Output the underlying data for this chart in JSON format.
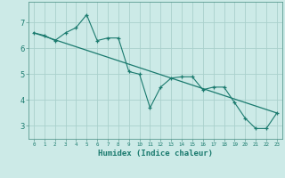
{
  "line1_x": [
    0,
    1,
    2,
    3,
    4,
    5,
    6,
    7,
    8,
    9,
    10,
    11,
    12,
    13,
    14,
    15,
    16,
    17,
    18,
    19,
    20,
    21,
    22,
    23
  ],
  "line1_y": [
    6.6,
    6.5,
    6.3,
    6.6,
    6.8,
    7.3,
    6.3,
    6.4,
    6.4,
    5.1,
    5.0,
    3.7,
    4.5,
    4.85,
    4.9,
    4.9,
    4.4,
    4.5,
    4.5,
    3.9,
    3.3,
    2.9,
    2.9,
    3.5
  ],
  "line2_x": [
    0,
    23
  ],
  "line2_y": [
    6.6,
    3.5
  ],
  "line_color": "#1a7a6e",
  "bg_color": "#cceae7",
  "grid_color": "#aad0cc",
  "xlabel": "Humidex (Indice chaleur)",
  "xlim": [
    -0.5,
    23.5
  ],
  "ylim": [
    2.5,
    7.8
  ],
  "yticks": [
    3,
    4,
    5,
    6,
    7
  ],
  "xticks": [
    0,
    1,
    2,
    3,
    4,
    5,
    6,
    7,
    8,
    9,
    10,
    11,
    12,
    13,
    14,
    15,
    16,
    17,
    18,
    19,
    20,
    21,
    22,
    23
  ]
}
